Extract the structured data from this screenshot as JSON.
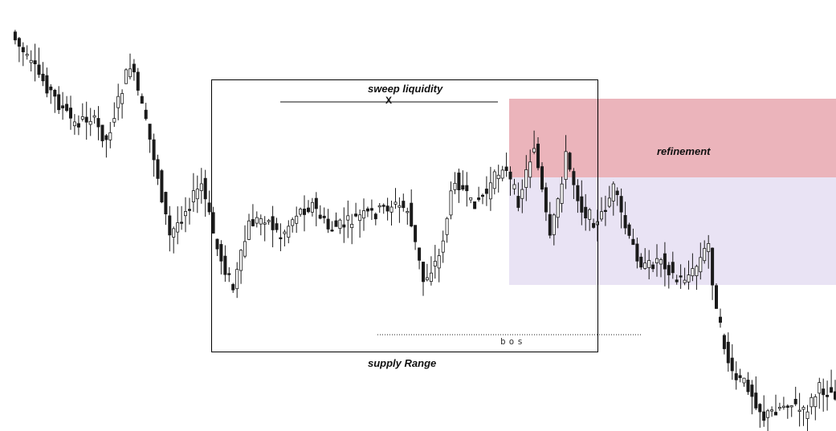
{
  "colors": {
    "background": "#ffffff",
    "candle_bull": "#ffffff",
    "candle_bear": "#1a1a1a",
    "wick": "#1a1a1a",
    "refinement_zone": "#ebb4bb",
    "supply_zone": "#e9e3f4",
    "range_box": "#000000"
  },
  "annotations": {
    "sweep_label": "sweep liquidity",
    "sweep_mark": "X",
    "refinement_label": "refinement",
    "range_label": "supply Range",
    "bos_label": "bos"
  },
  "chart_data": {
    "type": "candlestick",
    "title": "",
    "xlabel": "",
    "ylabel": "",
    "grid": false,
    "legend": "none",
    "description_of_series": "price candles; close path approximated from the figure",
    "close_path": [
      [
        0,
        0.04
      ],
      [
        4,
        0.11
      ],
      [
        8,
        0.16
      ],
      [
        12,
        0.22
      ],
      [
        16,
        0.27
      ],
      [
        20,
        0.25
      ],
      [
        24,
        0.31
      ],
      [
        28,
        0.18
      ],
      [
        30,
        0.12
      ],
      [
        32,
        0.19
      ],
      [
        36,
        0.35
      ],
      [
        40,
        0.55
      ],
      [
        44,
        0.48
      ],
      [
        48,
        0.42
      ],
      [
        52,
        0.58
      ],
      [
        56,
        0.68
      ],
      [
        60,
        0.52
      ],
      [
        64,
        0.5
      ],
      [
        68,
        0.55
      ],
      [
        72,
        0.49
      ],
      [
        76,
        0.47
      ],
      [
        80,
        0.53
      ],
      [
        84,
        0.52
      ],
      [
        88,
        0.5
      ],
      [
        92,
        0.49
      ],
      [
        96,
        0.47
      ],
      [
        100,
        0.48
      ],
      [
        104,
        0.66
      ],
      [
        108,
        0.6
      ],
      [
        112,
        0.4
      ],
      [
        116,
        0.47
      ],
      [
        120,
        0.44
      ],
      [
        124,
        0.37
      ],
      [
        128,
        0.46
      ],
      [
        132,
        0.32
      ],
      [
        136,
        0.56
      ],
      [
        140,
        0.35
      ],
      [
        144,
        0.48
      ],
      [
        148,
        0.52
      ],
      [
        152,
        0.43
      ],
      [
        156,
        0.56
      ],
      [
        160,
        0.63
      ],
      [
        164,
        0.6
      ],
      [
        168,
        0.66
      ],
      [
        172,
        0.64
      ],
      [
        176,
        0.57
      ],
      [
        178,
        0.74
      ],
      [
        182,
        0.9
      ],
      [
        186,
        0.92
      ],
      [
        190,
        1.0
      ],
      [
        196,
        0.96
      ],
      [
        200,
        0.99
      ],
      [
        204,
        0.93
      ],
      [
        208,
        0.94
      ]
    ]
  }
}
